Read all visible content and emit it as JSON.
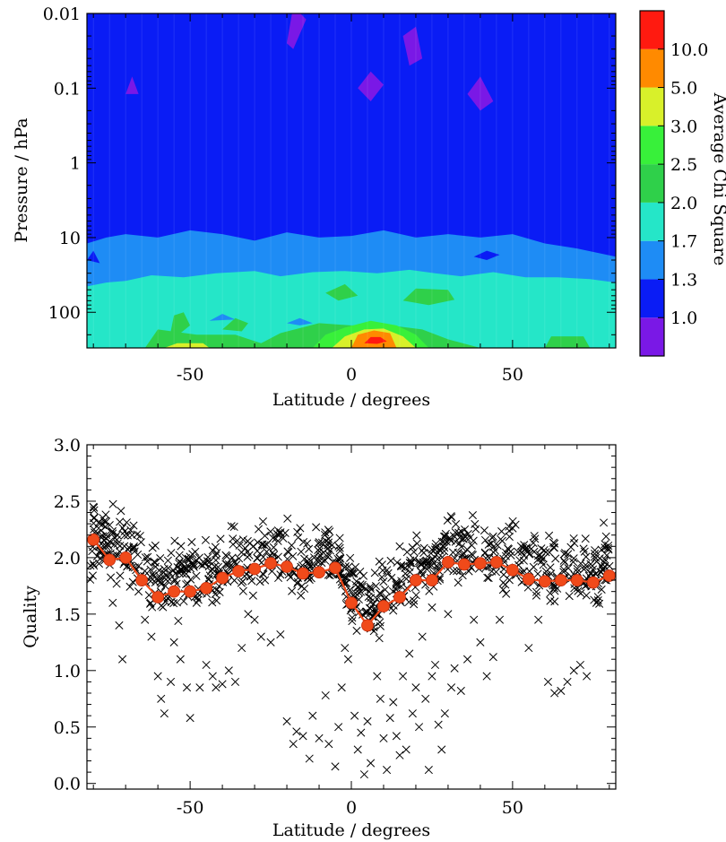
{
  "chart_data": [
    {
      "type": "contour",
      "xlabel": "Latitude / degrees",
      "ylabel": "Pressure / hPa",
      "xlim": [
        -82,
        82
      ],
      "x_ticks": [
        -50,
        0,
        50
      ],
      "x_tick_labels": [
        "-50",
        "0",
        "50"
      ],
      "y_scale": "log",
      "ylim": [
        300,
        0.01
      ],
      "y_ticks": [
        0.01,
        0.1,
        1,
        10,
        100
      ],
      "y_tick_labels": [
        "0.01",
        "0.1",
        "1",
        "10",
        "100"
      ],
      "colorbar": {
        "title": "Average Chi Square",
        "levels": [
          "1.0",
          "1.3",
          "1.7",
          "2.0",
          "2.5",
          "3.0",
          "5.0",
          "10.0"
        ],
        "colors": [
          "#7a18e6",
          "#0a1cf5",
          "#1e8cf5",
          "#25e6c8",
          "#2fd04a",
          "#38f03a",
          "#d8f02a",
          "#ff8a00",
          "#ff1a10"
        ]
      },
      "bands": [
        {
          "name": "upper_atmosphere",
          "p_range": [
            0.01,
            20
          ],
          "level": "1.0"
        },
        {
          "name": "mid_band",
          "p_range": [
            15,
            60
          ],
          "level": "1.3"
        },
        {
          "name": "lower_band",
          "p_range": [
            40,
            300
          ],
          "level": "1.7"
        }
      ],
      "features": [
        {
          "lat": 7,
          "p": 230,
          "level": "10.0",
          "shape": "equatorial_maximum"
        },
        {
          "lat": 7,
          "p": 180,
          "level": "5.0"
        },
        {
          "lat": -55,
          "p": 260,
          "level": "3.0"
        },
        {
          "lat": 65,
          "p": 250,
          "level": "2.5"
        },
        {
          "lat": -18,
          "p": 0.015,
          "level": "below"
        },
        {
          "lat": 17,
          "p": 0.03,
          "level": "below"
        },
        {
          "lat": 40,
          "p": 0.1,
          "level": "below"
        }
      ]
    },
    {
      "type": "scatter+line",
      "xlabel": "Latitude / degrees",
      "ylabel": "Quality",
      "xlim": [
        -82,
        82
      ],
      "ylim": [
        -0.05,
        3.0
      ],
      "x_ticks": [
        -50,
        0,
        50
      ],
      "x_tick_labels": [
        "-50",
        "0",
        "50"
      ],
      "y_ticks": [
        0,
        0.5,
        1,
        1.5,
        2,
        2.5,
        3
      ],
      "y_tick_labels": [
        "0.0",
        "0.5",
        "1.0",
        "1.5",
        "2.0",
        "2.5",
        "3.0"
      ],
      "line_color": "#f04a1a",
      "mean_series": {
        "x": [
          -80,
          -75,
          -70,
          -65,
          -60,
          -55,
          -50,
          -45,
          -40,
          -35,
          -30,
          -25,
          -20,
          -15,
          -10,
          -5,
          0,
          5,
          10,
          15,
          20,
          25,
          30,
          35,
          40,
          45,
          50,
          55,
          60,
          65,
          70,
          75,
          80
        ],
        "y": [
          2.16,
          1.98,
          2.0,
          1.8,
          1.65,
          1.7,
          1.7,
          1.73,
          1.82,
          1.88,
          1.9,
          1.95,
          1.92,
          1.86,
          1.87,
          1.91,
          1.6,
          1.4,
          1.57,
          1.65,
          1.8,
          1.8,
          1.96,
          1.94,
          1.95,
          1.96,
          1.89,
          1.81,
          1.79,
          1.8,
          1.8,
          1.78,
          1.84
        ]
      },
      "scatter_points": [
        [
          -80,
          2.45
        ],
        [
          -78,
          2.3
        ],
        [
          -76,
          2.1
        ],
        [
          -74,
          1.6
        ],
        [
          -72,
          1.4
        ],
        [
          -71,
          1.1
        ],
        [
          -68,
          2.2
        ],
        [
          -66,
          1.7
        ],
        [
          -64,
          1.45
        ],
        [
          -62,
          1.3
        ],
        [
          -60,
          0.95
        ],
        [
          -59,
          0.75
        ],
        [
          -58,
          0.62
        ],
        [
          -56,
          0.9
        ],
        [
          -55,
          1.25
        ],
        [
          -53,
          1.1
        ],
        [
          -51,
          0.85
        ],
        [
          -50,
          0.58
        ],
        [
          -48,
          1.6
        ],
        [
          -47,
          0.85
        ],
        [
          -45,
          1.05
        ],
        [
          -43,
          0.95
        ],
        [
          -42,
          0.85
        ],
        [
          -40,
          0.88
        ],
        [
          -38,
          1.0
        ],
        [
          -36,
          0.9
        ],
        [
          -34,
          1.2
        ],
        [
          -32,
          1.5
        ],
        [
          -30,
          1.45
        ],
        [
          -28,
          1.3
        ],
        [
          -25,
          1.25
        ],
        [
          -22,
          1.32
        ],
        [
          -20,
          0.55
        ],
        [
          -18,
          0.35
        ],
        [
          -17,
          0.46
        ],
        [
          -15,
          0.42
        ],
        [
          -13,
          0.22
        ],
        [
          -12,
          0.6
        ],
        [
          -10,
          0.4
        ],
        [
          -8,
          0.78
        ],
        [
          -7,
          0.35
        ],
        [
          -5,
          0.15
        ],
        [
          -4,
          0.5
        ],
        [
          -3,
          0.85
        ],
        [
          -2,
          1.2
        ],
        [
          -1,
          1.1
        ],
        [
          0,
          1.55
        ],
        [
          1,
          0.6
        ],
        [
          2,
          0.3
        ],
        [
          3,
          0.45
        ],
        [
          4,
          0.08
        ],
        [
          5,
          0.55
        ],
        [
          6,
          0.18
        ],
        [
          7,
          1.35
        ],
        [
          8,
          0.95
        ],
        [
          9,
          0.75
        ],
        [
          10,
          0.4
        ],
        [
          11,
          0.12
        ],
        [
          12,
          0.58
        ],
        [
          13,
          0.72
        ],
        [
          14,
          0.42
        ],
        [
          15,
          0.25
        ],
        [
          16,
          0.95
        ],
        [
          17,
          0.3
        ],
        [
          18,
          1.15
        ],
        [
          19,
          0.62
        ],
        [
          20,
          0.85
        ],
        [
          21,
          0.5
        ],
        [
          22,
          1.3
        ],
        [
          23,
          0.75
        ],
        [
          24,
          0.12
        ],
        [
          25,
          0.95
        ],
        [
          26,
          1.05
        ],
        [
          27,
          0.52
        ],
        [
          28,
          0.3
        ],
        [
          29,
          0.62
        ],
        [
          30,
          1.5
        ],
        [
          31,
          0.85
        ],
        [
          32,
          1.02
        ],
        [
          34,
          0.82
        ],
        [
          36,
          1.1
        ],
        [
          38,
          1.45
        ],
        [
          40,
          1.25
        ],
        [
          42,
          0.95
        ],
        [
          44,
          1.12
        ],
        [
          46,
          1.45
        ],
        [
          48,
          1.68
        ],
        [
          55,
          1.2
        ],
        [
          58,
          1.45
        ],
        [
          61,
          0.9
        ],
        [
          63,
          0.8
        ],
        [
          65,
          0.82
        ],
        [
          67,
          0.9
        ],
        [
          69,
          1.0
        ],
        [
          71,
          1.05
        ],
        [
          73,
          0.95
        ],
        [
          76,
          1.6
        ],
        [
          78,
          1.9
        ],
        [
          -22,
          1.85
        ],
        [
          15,
          2.1
        ]
      ]
    }
  ]
}
